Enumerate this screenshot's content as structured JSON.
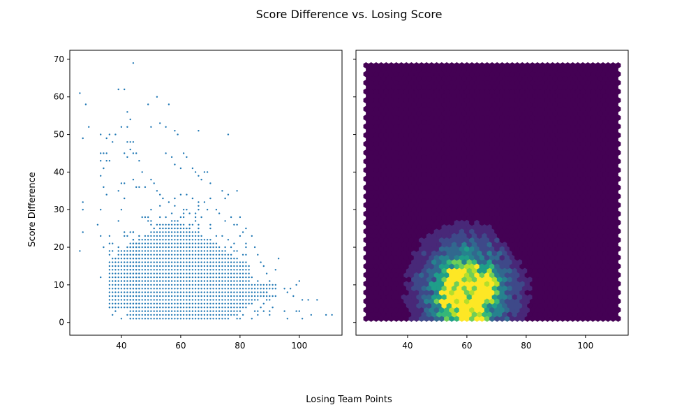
{
  "title": "Score Difference vs. Losing Score",
  "xlabel": "Losing Team Points",
  "ylabel": "Score Difference",
  "colors": {
    "scatter": "#1f77b4",
    "viridis": [
      "#440154",
      "#482878",
      "#3e4989",
      "#31688e",
      "#26828e",
      "#1f9e89",
      "#35b779",
      "#6ece58",
      "#b5de2b",
      "#fde725"
    ]
  },
  "chart_data": [
    {
      "type": "scatter",
      "xlim": [
        22.6,
        114.4
      ],
      "ylim": [
        -3.4,
        72.4
      ],
      "xticks": [
        40,
        60,
        80,
        100
      ],
      "yticks": [
        0,
        10,
        20,
        30,
        40,
        50,
        60,
        70
      ],
      "point_groups": [
        {
          "x_min": 43,
          "x_max": 83,
          "y_min": 1,
          "y_max": 20,
          "step": 1
        },
        {
          "x_min": 44,
          "x_max": 72,
          "y_min": 21,
          "y_max": 31,
          "step": 1
        },
        {
          "x_min": 36,
          "x_max": 46,
          "y_min": 4,
          "y_max": 24,
          "step": 1
        },
        {
          "x_min": 84,
          "x_max": 92,
          "y_min": 1,
          "y_max": 10,
          "step": 1
        }
      ],
      "points": [
        [
          26,
          61
        ],
        [
          27,
          49
        ],
        [
          27,
          32
        ],
        [
          28,
          58
        ],
        [
          27,
          30
        ],
        [
          29,
          52
        ],
        [
          26,
          19
        ],
        [
          27,
          24
        ],
        [
          32,
          26
        ],
        [
          33,
          50
        ],
        [
          33,
          45
        ],
        [
          34,
          45
        ],
        [
          35,
          45
        ],
        [
          33,
          43
        ],
        [
          34,
          41
        ],
        [
          33,
          39
        ],
        [
          34,
          36
        ],
        [
          35,
          34
        ],
        [
          33,
          30
        ],
        [
          33,
          23
        ],
        [
          34,
          20
        ],
        [
          33,
          12
        ],
        [
          35,
          49
        ],
        [
          36,
          50
        ],
        [
          37,
          48
        ],
        [
          36,
          43
        ],
        [
          35,
          43
        ],
        [
          38,
          50
        ],
        [
          39,
          62
        ],
        [
          41,
          62
        ],
        [
          40,
          52
        ],
        [
          42,
          56
        ],
        [
          42,
          52
        ],
        [
          43,
          54
        ],
        [
          44,
          69
        ],
        [
          42,
          48
        ],
        [
          43,
          48
        ],
        [
          44,
          48
        ],
        [
          43,
          46
        ],
        [
          41,
          45
        ],
        [
          44,
          45
        ],
        [
          45,
          45
        ],
        [
          42,
          44
        ],
        [
          46,
          43
        ],
        [
          47,
          40
        ],
        [
          49,
          58
        ],
        [
          50,
          52
        ],
        [
          52,
          60
        ],
        [
          53,
          53
        ],
        [
          56,
          58
        ],
        [
          55,
          52
        ],
        [
          58,
          51
        ],
        [
          59,
          50
        ],
        [
          55,
          45
        ],
        [
          57,
          44
        ],
        [
          58,
          42
        ],
        [
          61,
          45
        ],
        [
          62,
          44
        ],
        [
          60,
          41
        ],
        [
          64,
          41
        ],
        [
          65,
          40
        ],
        [
          66,
          39
        ],
        [
          67,
          38
        ],
        [
          68,
          40
        ],
        [
          69,
          40
        ],
        [
          70,
          37
        ],
        [
          66,
          51
        ],
        [
          76,
          50
        ],
        [
          74,
          35
        ],
        [
          75,
          33
        ],
        [
          76,
          34
        ],
        [
          79,
          35
        ],
        [
          80,
          28
        ],
        [
          78,
          26
        ],
        [
          82,
          25
        ],
        [
          84,
          23
        ],
        [
          85,
          20
        ],
        [
          86,
          18
        ],
        [
          87,
          16
        ],
        [
          88,
          15
        ],
        [
          89,
          13
        ],
        [
          90,
          11
        ],
        [
          93,
          17
        ],
        [
          92,
          14
        ],
        [
          95,
          9
        ],
        [
          96,
          8
        ],
        [
          97,
          9
        ],
        [
          99,
          10
        ],
        [
          100,
          11
        ],
        [
          98,
          7
        ],
        [
          101,
          6
        ],
        [
          103,
          6
        ],
        [
          99,
          3
        ],
        [
          95,
          3
        ],
        [
          96,
          1
        ],
        [
          100,
          3
        ],
        [
          101,
          1
        ],
        [
          104,
          2
        ],
        [
          106,
          6
        ],
        [
          109,
          2
        ],
        [
          111,
          2
        ],
        [
          36,
          4
        ],
        [
          37,
          4
        ],
        [
          37,
          2
        ],
        [
          38,
          3
        ],
        [
          40,
          1
        ],
        [
          42,
          2
        ],
        [
          43,
          1
        ],
        [
          39,
          27
        ],
        [
          40,
          30
        ],
        [
          41,
          33
        ],
        [
          39,
          35
        ],
        [
          40,
          37
        ],
        [
          41,
          37
        ],
        [
          44,
          38
        ],
        [
          45,
          36
        ],
        [
          46,
          36
        ],
        [
          48,
          36
        ],
        [
          50,
          38
        ],
        [
          51,
          37
        ],
        [
          52,
          35
        ],
        [
          53,
          34
        ],
        [
          54,
          33
        ],
        [
          56,
          32
        ],
        [
          58,
          33
        ],
        [
          60,
          34
        ],
        [
          62,
          34
        ],
        [
          64,
          33
        ],
        [
          66,
          32
        ],
        [
          68,
          32
        ],
        [
          70,
          33
        ],
        [
          72,
          30
        ],
        [
          73,
          29
        ],
        [
          75,
          27
        ],
        [
          77,
          28
        ],
        [
          79,
          26
        ],
        [
          80,
          23
        ],
        [
          81,
          24
        ],
        [
          82,
          21
        ],
        [
          74,
          23
        ],
        [
          76,
          22
        ],
        [
          78,
          21
        ],
        [
          85,
          3
        ],
        [
          86,
          2
        ],
        [
          88,
          3
        ],
        [
          90,
          2
        ],
        [
          91,
          4
        ],
        [
          89,
          8
        ],
        [
          84,
          12
        ],
        [
          86,
          11
        ]
      ]
    },
    {
      "type": "heatmap",
      "subtype": "hexbin",
      "xlim": [
        22.6,
        114.4
      ],
      "ylim": [
        -3.4,
        72.4
      ],
      "xticks": [
        40,
        60,
        80,
        100
      ],
      "yticks": [
        0,
        10,
        20,
        30,
        40,
        50,
        60,
        70
      ],
      "gridsize": 50,
      "extent": [
        26,
        111,
        1,
        69
      ],
      "color_scale": "viridis",
      "density_peaks": [
        {
          "x": 62,
          "y": 3,
          "weight": 1.0
        },
        {
          "x": 67,
          "y": 10,
          "weight": 0.9
        },
        {
          "x": 58,
          "y": 12,
          "weight": 0.85
        },
        {
          "x": 55,
          "y": 6,
          "weight": 0.8
        }
      ]
    }
  ]
}
